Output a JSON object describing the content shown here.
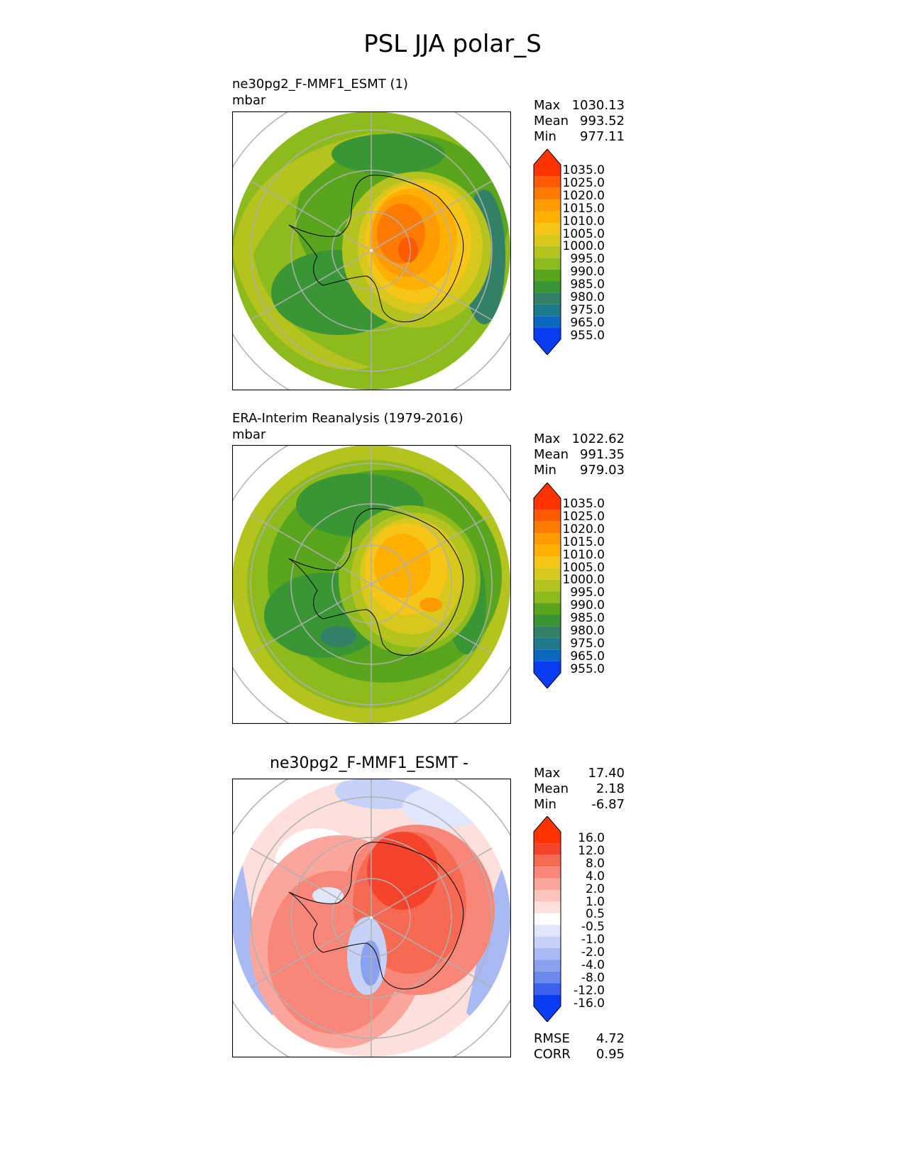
{
  "figure": {
    "title": "PSL JJA polar_S"
  },
  "chart_data": [
    {
      "type": "heatmap",
      "projection": "south polar stereographic",
      "title": "ne30pg2_F-MMF1_ESMT (1)",
      "units": "mbar",
      "stats": {
        "max": "1030.13",
        "mean": "993.52",
        "min": "977.11"
      },
      "colorbar": {
        "levels": [
          "1035.0",
          "1025.0",
          "1020.0",
          "1015.0",
          "1010.0",
          "1005.0",
          "1000.0",
          "995.0",
          "990.0",
          "985.0",
          "980.0",
          "975.0",
          "965.0",
          "955.0"
        ],
        "colors": [
          "#ff3300",
          "#ff5a00",
          "#ff7a00",
          "#ff9a00",
          "#ffb000",
          "#f5c518",
          "#d8c81e",
          "#b5c31e",
          "#8dba1c",
          "#5aa51e",
          "#3a9535",
          "#338068",
          "#1f7a8c",
          "#0b68c0",
          "#0a3df2"
        ],
        "extend": "both"
      }
    },
    {
      "type": "heatmap",
      "projection": "south polar stereographic",
      "title": "ERA-Interim Reanalysis (1979-2016)",
      "units": "mbar",
      "stats": {
        "max": "1022.62",
        "mean": "991.35",
        "min": "979.03"
      },
      "colorbar": {
        "levels": [
          "1035.0",
          "1025.0",
          "1020.0",
          "1015.0",
          "1010.0",
          "1005.0",
          "1000.0",
          "995.0",
          "990.0",
          "985.0",
          "980.0",
          "975.0",
          "965.0",
          "955.0"
        ],
        "colors": [
          "#ff3300",
          "#ff5a00",
          "#ff7a00",
          "#ff9a00",
          "#ffb000",
          "#f5c518",
          "#d8c81e",
          "#b5c31e",
          "#8dba1c",
          "#5aa51e",
          "#3a9535",
          "#338068",
          "#1f7a8c",
          "#0b68c0",
          "#0a3df2"
        ],
        "extend": "both"
      }
    },
    {
      "type": "heatmap",
      "projection": "south polar stereographic",
      "title": "ne30pg2_F-MMF1_ESMT -",
      "stats": {
        "max": "17.40",
        "mean": "2.18",
        "min": "-6.87",
        "rmse": "4.72",
        "corr": "0.95"
      },
      "colorbar": {
        "levels": [
          "16.0",
          "12.0",
          "8.0",
          "4.0",
          "2.0",
          "1.0",
          "0.5",
          "-0.5",
          "-1.0",
          "-2.0",
          "-4.0",
          "-8.0",
          "-12.0",
          "-16.0"
        ],
        "colors": [
          "#ff3300",
          "#f5432c",
          "#f66a54",
          "#f8877a",
          "#faa69c",
          "#fbc4bc",
          "#fde0dc",
          "#ffffff",
          "#e0e6fb",
          "#c6d1f8",
          "#a8b9f4",
          "#8aa1f0",
          "#6b88ec",
          "#3a62ee",
          "#0a3df2"
        ],
        "extend": "both"
      }
    }
  ],
  "labels": {
    "max": "Max",
    "mean": "Mean",
    "min": "Min",
    "rmse": "RMSE",
    "corr": "CORR"
  }
}
